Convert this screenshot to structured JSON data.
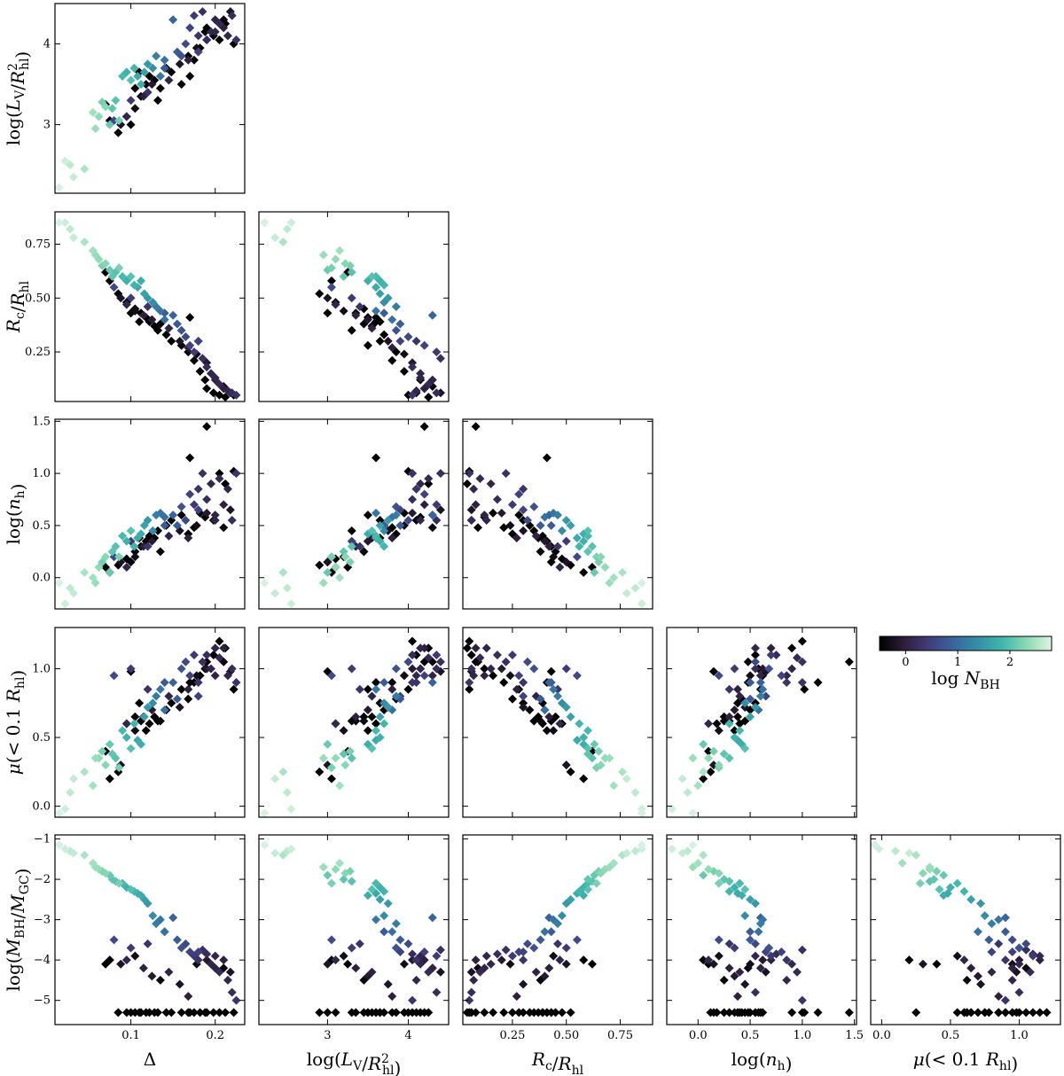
{
  "figure": {
    "title": "",
    "colorbar": {
      "label": "log N_BH",
      "range": [
        -0.5,
        2.8
      ],
      "ticks": [
        0,
        1,
        2
      ],
      "tick_labels": [
        "0",
        "1",
        "2"
      ],
      "colormap": [
        "#000000",
        "#2e1e3b",
        "#413d7b",
        "#37659e",
        "#348fa7",
        "#40b7ad",
        "#8bdab2",
        "#def5e5"
      ]
    }
  },
  "chart_data": {
    "type": "scatter",
    "marker": "diamond",
    "variables": [
      {
        "key": "delta",
        "label": "Δ",
        "range": [
          0.01,
          0.235
        ],
        "ticks": [
          0.1,
          0.2
        ],
        "tick_labels": [
          "0.1",
          "0.2"
        ]
      },
      {
        "key": "logL",
        "label": "log(L_V/R_hl^2)",
        "range": [
          2.15,
          4.5
        ],
        "ticks": [
          3,
          4
        ],
        "tick_labels": [
          "3",
          "4"
        ]
      },
      {
        "key": "rc",
        "label": "R_c/R_hl",
        "range": [
          0.02,
          0.9
        ],
        "ticks": [
          0.25,
          0.5,
          0.75
        ],
        "tick_labels": [
          "0.25",
          "0.50",
          "0.75"
        ]
      },
      {
        "key": "logn",
        "label": "log(n_h)",
        "range": [
          -0.3,
          1.52
        ],
        "ticks": [
          0.0,
          0.5,
          1.0,
          1.5
        ],
        "tick_labels": [
          "0.0",
          "0.5",
          "1.0",
          "1.5"
        ]
      },
      {
        "key": "mu",
        "label": "μ(< 0.1 R_hl)",
        "range": [
          -0.08,
          1.3
        ],
        "ticks": [
          0.0,
          0.5,
          1.0
        ],
        "tick_labels": [
          "0.0",
          "0.5",
          "1.0"
        ]
      },
      {
        "key": "mbh",
        "label": "log(M_BH/M_GC)",
        "range": [
          -5.6,
          -0.9
        ],
        "ticks": [
          -1,
          -2,
          -3,
          -4,
          -5
        ],
        "tick_labels": [
          "−1",
          "−2",
          "−3",
          "−4",
          "−5"
        ]
      }
    ],
    "points": [
      [
        0.015,
        2.22,
        0.85,
        -0.05,
        -0.05,
        -1.15,
        2.75
      ],
      [
        0.022,
        2.55,
        0.85,
        -0.25,
        -0.02,
        -1.25,
        2.7
      ],
      [
        0.028,
        2.5,
        0.82,
        -0.1,
        0.1,
        -1.3,
        2.6
      ],
      [
        0.032,
        2.35,
        0.78,
        -0.15,
        0.2,
        -1.35,
        2.65
      ],
      [
        0.045,
        2.45,
        0.76,
        0.05,
        0.25,
        -1.4,
        2.5
      ],
      [
        0.055,
        3.15,
        0.72,
        0.0,
        0.15,
        -1.6,
        2.45
      ],
      [
        0.058,
        2.95,
        0.7,
        -0.05,
        0.35,
        -1.7,
        2.4
      ],
      [
        0.062,
        3.1,
        0.68,
        0.1,
        0.35,
        -1.75,
        2.35
      ],
      [
        0.066,
        3.28,
        0.65,
        0.15,
        0.4,
        -1.8,
        2.2
      ],
      [
        0.07,
        3.22,
        0.66,
        0.2,
        0.3,
        -1.85,
        2.3
      ],
      [
        0.075,
        3.0,
        0.63,
        0.05,
        0.45,
        -1.9,
        2.1
      ],
      [
        0.078,
        3.2,
        0.6,
        0.25,
        0.38,
        -2.0,
        2.05
      ],
      [
        0.082,
        3.3,
        0.62,
        0.3,
        0.35,
        -2.05,
        2.0
      ],
      [
        0.086,
        3.05,
        0.64,
        0.2,
        0.28,
        -2.1,
        2.2
      ],
      [
        0.09,
        3.6,
        0.6,
        0.4,
        0.55,
        -2.1,
        1.9
      ],
      [
        0.095,
        3.65,
        0.58,
        0.35,
        0.5,
        -2.2,
        1.8
      ],
      [
        0.1,
        3.55,
        0.6,
        0.45,
        0.42,
        -2.25,
        2.0
      ],
      [
        0.104,
        3.7,
        0.56,
        0.3,
        0.6,
        -2.3,
        1.85
      ],
      [
        0.108,
        3.6,
        0.55,
        0.38,
        0.48,
        -2.35,
        1.7
      ],
      [
        0.112,
        3.5,
        0.58,
        0.42,
        0.45,
        -2.4,
        1.75
      ],
      [
        0.116,
        3.65,
        0.52,
        0.5,
        0.65,
        -2.5,
        1.6
      ],
      [
        0.12,
        3.75,
        0.5,
        0.55,
        0.72,
        -2.6,
        1.5
      ],
      [
        0.126,
        3.7,
        0.48,
        0.45,
        0.75,
        -2.9,
        1.35
      ],
      [
        0.13,
        3.85,
        0.46,
        0.6,
        0.8,
        -3.1,
        1.2
      ],
      [
        0.135,
        3.6,
        0.44,
        0.62,
        0.85,
        -3.0,
        1.1
      ],
      [
        0.14,
        3.8,
        0.4,
        0.58,
        0.7,
        -3.3,
        1.05
      ],
      [
        0.15,
        4.3,
        0.42,
        0.6,
        0.9,
        -2.95,
        0.9
      ],
      [
        0.155,
        3.9,
        0.38,
        0.5,
        0.78,
        -3.5,
        0.8
      ],
      [
        0.16,
        3.85,
        0.35,
        0.68,
        1.0,
        -3.7,
        0.7
      ],
      [
        0.165,
        4.0,
        0.32,
        0.55,
        1.05,
        -3.6,
        0.6
      ],
      [
        0.17,
        4.2,
        0.28,
        0.8,
        0.95,
        -3.8,
        0.5
      ],
      [
        0.175,
        4.35,
        0.25,
        0.7,
        1.1,
        -3.9,
        0.4
      ],
      [
        0.18,
        4.1,
        0.3,
        0.85,
        0.9,
        -4.0,
        0.3
      ],
      [
        0.185,
        4.4,
        0.22,
        1.0,
        1.05,
        -3.75,
        0.25
      ],
      [
        0.19,
        4.05,
        0.18,
        0.75,
        1.1,
        -3.85,
        0.2
      ],
      [
        0.195,
        4.15,
        0.15,
        0.9,
        1.0,
        -4.1,
        0.1
      ],
      [
        0.2,
        4.3,
        0.12,
        0.6,
        0.95,
        -4.2,
        0.05
      ],
      [
        0.205,
        4.25,
        0.1,
        0.95,
        1.08,
        -4.3,
        0.15
      ],
      [
        0.21,
        4.2,
        0.08,
        0.7,
        1.15,
        -4.0,
        0.0
      ],
      [
        0.215,
        4.1,
        0.07,
        0.85,
        0.95,
        -4.5,
        0.1
      ],
      [
        0.22,
        4.35,
        0.06,
        0.55,
        1.0,
        -4.8,
        0.2
      ],
      [
        0.225,
        4.05,
        0.05,
        1.0,
        0.9,
        -5.0,
        0.3
      ],
      [
        0.088,
        3.0,
        0.5,
        0.15,
        0.3,
        -4.1,
        -0.2
      ],
      [
        0.095,
        3.1,
        0.47,
        0.1,
        0.6,
        -4.0,
        0.1
      ],
      [
        0.105,
        3.2,
        0.44,
        0.2,
        0.55,
        -3.9,
        -0.3
      ],
      [
        0.115,
        3.35,
        0.42,
        0.3,
        0.65,
        -4.2,
        0.0
      ],
      [
        0.125,
        3.5,
        0.4,
        0.35,
        0.7,
        -4.4,
        -0.1
      ],
      [
        0.135,
        3.45,
        0.38,
        0.25,
        0.62,
        -4.5,
        -0.4
      ],
      [
        0.145,
        3.55,
        0.36,
        0.4,
        0.8,
        -4.3,
        0.05
      ],
      [
        0.158,
        3.75,
        0.3,
        0.45,
        0.72,
        -4.6,
        -0.2
      ],
      [
        0.168,
        3.8,
        0.27,
        0.38,
        0.85,
        -4.9,
        0.0
      ],
      [
        0.178,
        3.95,
        0.24,
        0.5,
        0.95,
        -4.1,
        -0.3
      ],
      [
        0.19,
        4.05,
        0.2,
        0.62,
        1.0,
        -4.0,
        -0.1
      ],
      [
        0.2,
        4.15,
        0.13,
        0.55,
        1.15,
        -3.9,
        0.1
      ],
      [
        0.21,
        4.3,
        0.09,
        0.48,
        1.05,
        -4.2,
        -0.4
      ],
      [
        0.218,
        4.4,
        0.06,
        0.65,
        0.98,
        -4.3,
        -0.2
      ],
      [
        0.08,
        3.05,
        0.55,
        0.2,
        0.95,
        -3.5,
        0.6
      ],
      [
        0.1,
        3.3,
        0.5,
        0.35,
        1.0,
        -3.7,
        0.4
      ],
      [
        0.12,
        3.4,
        0.46,
        0.3,
        0.85,
        -3.6,
        0.3
      ],
      [
        0.14,
        3.7,
        0.43,
        0.5,
        0.9,
        -3.3,
        0.8
      ],
      [
        0.18,
        3.9,
        0.3,
        0.65,
        0.8,
        -3.8,
        0.5
      ],
      [
        0.07,
        3.25,
        0.62,
        0.1,
        0.4,
        -4.1,
        -0.6
      ],
      [
        0.075,
        3.05,
        0.58,
        0.05,
        0.2,
        -4.0,
        -0.7
      ],
      [
        0.085,
        2.9,
        0.52,
        0.12,
        0.25,
        -5.3,
        -1.0
      ],
      [
        0.095,
        3.1,
        0.48,
        0.18,
        0.6,
        -5.3,
        -1.0
      ],
      [
        0.105,
        3.45,
        0.45,
        0.25,
        0.65,
        -5.3,
        -1.0
      ],
      [
        0.112,
        3.35,
        0.43,
        0.3,
        0.62,
        -5.3,
        -1.0
      ],
      [
        0.118,
        3.5,
        0.41,
        0.35,
        0.55,
        -5.3,
        -1.0
      ],
      [
        0.122,
        3.6,
        0.39,
        0.4,
        0.6,
        -5.3,
        -1.0
      ],
      [
        0.128,
        3.55,
        0.37,
        0.38,
        0.65,
        -5.3,
        -1.0
      ],
      [
        0.132,
        3.3,
        0.35,
        0.45,
        0.62,
        -5.3,
        -1.0
      ],
      [
        0.142,
        3.7,
        0.33,
        0.5,
        0.7,
        -5.3,
        -1.0
      ],
      [
        0.148,
        3.65,
        0.3,
        0.55,
        0.75,
        -5.3,
        -1.0
      ],
      [
        0.16,
        3.5,
        0.28,
        0.6,
        0.85,
        -5.3,
        -1.0
      ],
      [
        0.168,
        3.85,
        0.25,
        0.42,
        0.78,
        -5.3,
        -1.0
      ],
      [
        0.175,
        3.8,
        0.21,
        0.48,
        0.9,
        -5.3,
        -1.0
      ],
      [
        0.182,
        3.95,
        0.16,
        0.62,
        0.95,
        -5.3,
        -1.0
      ],
      [
        0.188,
        4.15,
        0.12,
        0.58,
        1.0,
        -5.3,
        -1.0
      ],
      [
        0.19,
        4.2,
        0.08,
        1.45,
        1.05,
        -5.3,
        -1.0
      ],
      [
        0.198,
        4.1,
        0.06,
        0.55,
        1.1,
        -5.3,
        -1.0
      ],
      [
        0.205,
        4.05,
        0.05,
        1.0,
        1.2,
        -5.3,
        -1.0
      ],
      [
        0.212,
        4.25,
        0.04,
        0.9,
        1.15,
        -5.3,
        -1.0
      ],
      [
        0.222,
        4.0,
        0.05,
        1.02,
        0.85,
        -5.3,
        -1.0
      ],
      [
        0.17,
        3.6,
        0.41,
        1.15,
        0.9,
        -5.3,
        -1.0
      ],
      [
        0.11,
        3.65,
        0.39,
        0.38,
        0.75,
        -5.3,
        -1.0
      ],
      [
        0.1,
        3.0,
        0.43,
        0.15,
        0.98,
        -5.3,
        -1.0
      ]
    ]
  }
}
